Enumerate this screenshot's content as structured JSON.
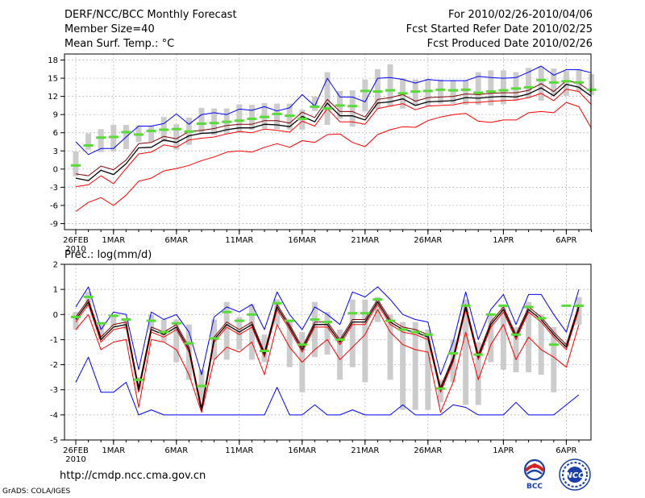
{
  "header": {
    "title": "DERF/NCC/BCC Monthly Forecast",
    "member_size": "Member Size=40",
    "variable_temp": "Mean Surf. Temp.: °C",
    "for_period": "For 2010/02/26-2010/04/06",
    "fcst_started": "Fcst Started Refer Date 2010/02/25",
    "fcst_produced": "Fcst Produced Date 2010/02/26"
  },
  "footer": {
    "url": "http://cmdp.ncc.cma.gov.cn",
    "grads": "GrADS: COLA/IGES",
    "logo_bcc": "BCC",
    "logo_ncc": "NCC"
  },
  "colors": {
    "mean": "#000000",
    "upper": "#0000ff",
    "lower": "#ff0000",
    "band_inner": "#800000",
    "bar": "#cccccc",
    "marker": "#55dd33"
  },
  "chart_data": [
    {
      "type": "line",
      "id": "temp",
      "title": "Mean Surf. Temp.: °C",
      "ylim": [
        -10,
        19
      ],
      "yticks": [
        -9,
        -6,
        -3,
        0,
        3,
        6,
        9,
        12,
        15,
        18
      ],
      "x_tick_labels": [
        "26FEB",
        "1MAR",
        "6MAR",
        "11MAR",
        "16MAR",
        "21MAR",
        "26MAR",
        "1APR",
        "6APR"
      ],
      "x_tick_days": [
        1,
        4,
        9,
        14,
        19,
        24,
        29,
        35,
        40
      ],
      "x_sub_label": "2010",
      "mean": [
        -1.5,
        -1.9,
        -0.2,
        -0.9,
        0.9,
        3.5,
        3.6,
        4.8,
        4.4,
        5.5,
        5.9,
        6.0,
        6.5,
        6.8,
        6.8,
        7.4,
        7.3,
        7.0,
        8.7,
        7.8,
        10.9,
        8.8,
        8.8,
        8.1,
        10.9,
        11.1,
        11.6,
        10.5,
        11.1,
        11.2,
        11.3,
        11.8,
        11.7,
        11.9,
        12.0,
        11.9,
        12.4,
        13.4,
        12.1,
        14.0,
        13.5,
        12.0
      ],
      "upper": [
        4.5,
        2.4,
        3.4,
        3.4,
        5.3,
        7.1,
        7.1,
        7.5,
        9.1,
        7.4,
        9.0,
        9.3,
        9.0,
        9.9,
        9.7,
        10.3,
        9.6,
        10.1,
        12.3,
        10.4,
        15.0,
        11.9,
        11.9,
        11.1,
        15.0,
        15.1,
        14.8,
        14.2,
        14.8,
        14.6,
        14.6,
        14.6,
        15.3,
        15.1,
        15.0,
        15.1,
        16.0,
        17.0,
        15.5,
        16.4,
        16.4,
        15.9
      ],
      "p_upper": [
        -0.8,
        -1.1,
        0.5,
        -0.1,
        1.5,
        4.2,
        4.4,
        5.4,
        5.0,
        6.2,
        6.4,
        6.7,
        7.2,
        7.4,
        7.4,
        8.0,
        8.0,
        7.6,
        9.4,
        8.5,
        11.5,
        9.5,
        9.5,
        8.6,
        11.5,
        11.8,
        12.3,
        11.2,
        11.8,
        11.9,
        12.0,
        12.4,
        12.3,
        12.5,
        12.6,
        12.6,
        13.0,
        14.1,
        12.8,
        14.6,
        14.2,
        12.7
      ],
      "p_lower": [
        -2.9,
        -2.6,
        -1.1,
        -2.4,
        0.1,
        2.5,
        2.8,
        4.0,
        3.6,
        4.8,
        5.1,
        5.3,
        5.8,
        6.2,
        6.0,
        6.6,
        6.4,
        6.1,
        7.9,
        7.1,
        10.0,
        7.8,
        7.8,
        7.4,
        10.0,
        10.4,
        10.8,
        9.8,
        10.4,
        10.5,
        10.6,
        11.0,
        11.0,
        11.2,
        11.3,
        11.4,
        11.8,
        12.5,
        11.3,
        13.2,
        12.8,
        10.6
      ],
      "lower": [
        -7.0,
        -5.5,
        -4.7,
        -6.0,
        -4.3,
        -2.0,
        -1.5,
        -0.3,
        0.1,
        0.6,
        1.4,
        2.0,
        2.8,
        3.0,
        2.8,
        3.6,
        4.2,
        3.6,
        4.7,
        4.4,
        5.7,
        5.8,
        4.4,
        3.7,
        5.7,
        6.5,
        7.0,
        6.9,
        8.0,
        8.6,
        9.0,
        9.2,
        7.9,
        7.7,
        8.1,
        8.1,
        9.3,
        9.5,
        9.3,
        11.0,
        10.3,
        6.7
      ],
      "bar_low": [
        -1.2,
        3.2,
        2.8,
        2.9,
        3.3,
        4.5,
        4.5,
        4.5,
        3.2,
        4.0,
        5.8,
        5.6,
        5.8,
        6.0,
        6.5,
        6.7,
        6.6,
        6.5,
        6.5,
        9.6,
        7.3,
        8.3,
        7.0,
        9.5,
        9.9,
        10.3,
        10.0,
        10.5,
        10.4,
        10.8,
        10.8,
        10.6,
        10.6,
        10.5,
        10.7,
        11.3,
        11.8,
        11.3,
        12.2,
        12.1,
        12.8,
        12.2
      ],
      "bar_high": [
        2.9,
        5.9,
        6.6,
        7.3,
        7.3,
        7.2,
        7.2,
        8.6,
        7.4,
        8.5,
        10.1,
        10.0,
        10.0,
        10.7,
        10.6,
        10.9,
        10.8,
        10.8,
        9.8,
        12.0,
        16.0,
        12.9,
        13.0,
        14.8,
        16.5,
        17.3,
        15.0,
        14.8,
        14.9,
        14.8,
        14.7,
        14.6,
        16.0,
        16.3,
        16.3,
        16.0,
        16.7,
        16.9,
        16.6,
        16.2,
        16.5,
        15.7
      ],
      "marker": [
        0.6,
        3.9,
        5.2,
        5.3,
        6.1,
        5.7,
        6.3,
        6.5,
        6.6,
        6.2,
        7.5,
        7.6,
        7.8,
        8.0,
        8.3,
        8.6,
        9.1,
        8.8,
        8.3,
        10.3,
        10.0,
        10.5,
        10.4,
        12.9,
        12.8,
        13.0,
        12.5,
        12.8,
        12.9,
        13.1,
        13.0,
        13.1,
        12.6,
        12.8,
        13.0,
        13.3,
        13.5,
        14.7,
        14.3,
        14.5,
        14.3,
        13.1
      ]
    },
    {
      "type": "line",
      "id": "prec",
      "title": "Prec.: log(mm/d)",
      "ylim": [
        -5,
        2
      ],
      "yticks": [
        -5,
        -4,
        -3,
        -2,
        -1,
        0,
        1,
        2
      ],
      "x_tick_labels": [
        "26FEB",
        "1MAR",
        "6MAR",
        "11MAR",
        "16MAR",
        "21MAR",
        "26MAR",
        "1APR",
        "6APR"
      ],
      "x_tick_days": [
        1,
        4,
        9,
        14,
        19,
        24,
        29,
        35,
        40
      ],
      "x_sub_label": "2010",
      "mean": [
        -0.2,
        0.5,
        -1.0,
        -0.5,
        -0.4,
        -3.0,
        -0.6,
        -0.8,
        -0.5,
        -1.4,
        -3.8,
        -1.0,
        -0.4,
        -0.7,
        -0.4,
        -1.6,
        0.3,
        -0.5,
        -1.4,
        -0.4,
        -0.4,
        -1.1,
        -0.3,
        -0.3,
        0.5,
        -0.3,
        -0.6,
        -0.7,
        -0.9,
        -3.0,
        -1.8,
        0.3,
        -1.7,
        -0.4,
        0.2,
        -0.9,
        0.2,
        -0.2,
        -0.8,
        -1.3,
        0.3
      ],
      "upper": [
        0.3,
        1.1,
        -0.6,
        0.1,
        0.0,
        -2.2,
        0.1,
        -0.2,
        0.0,
        -0.7,
        -2.4,
        -0.1,
        0.3,
        0.1,
        0.4,
        -0.6,
        0.9,
        0.0,
        -0.6,
        0.3,
        0.0,
        -0.4,
        0.9,
        0.7,
        1.1,
        0.6,
        0.0,
        -0.2,
        -0.3,
        -2.4,
        -1.1,
        0.9,
        -1.0,
        0.2,
        0.8,
        -0.4,
        0.8,
        0.8,
        0.0,
        -0.7,
        1.0
      ],
      "p_upper": [
        -0.1,
        0.6,
        -0.9,
        -0.4,
        -0.3,
        -2.9,
        -0.5,
        -0.7,
        -0.4,
        -1.3,
        -3.7,
        -0.9,
        -0.3,
        -0.6,
        -0.3,
        -1.5,
        0.4,
        -0.4,
        -1.3,
        -0.3,
        -0.3,
        -1.0,
        -0.2,
        -0.2,
        0.6,
        -0.2,
        -0.5,
        -0.6,
        -0.8,
        -2.9,
        -1.7,
        0.4,
        -1.6,
        -0.3,
        0.3,
        -0.8,
        0.3,
        -0.1,
        -0.7,
        -1.2,
        0.4
      ],
      "p_lower": [
        -0.3,
        0.4,
        -1.1,
        -0.6,
        -0.5,
        -3.1,
        -0.7,
        -0.9,
        -0.6,
        -1.5,
        -3.9,
        -1.1,
        -0.5,
        -0.8,
        -0.5,
        -1.7,
        0.2,
        -0.6,
        -1.5,
        -0.5,
        -0.5,
        -1.2,
        -0.4,
        -0.4,
        0.4,
        -0.4,
        -0.7,
        -0.8,
        -1.0,
        -3.1,
        -1.9,
        0.2,
        -1.8,
        -0.5,
        0.1,
        -1.0,
        0.1,
        -0.3,
        -0.9,
        -1.4,
        0.2
      ],
      "lower": [
        -0.6,
        0.0,
        -1.4,
        -1.1,
        -1.0,
        -3.7,
        -1.0,
        -1.1,
        -1.4,
        -2.4,
        -3.9,
        -1.8,
        -1.3,
        -1.5,
        -1.1,
        -2.4,
        -0.4,
        -1.3,
        -1.9,
        -1.4,
        -1.0,
        -1.8,
        -1.3,
        -0.8,
        0.2,
        -0.7,
        -1.2,
        -1.4,
        -1.5,
        -3.9,
        -2.7,
        -0.7,
        -2.6,
        -1.2,
        -0.4,
        -1.8,
        -0.9,
        -1.4,
        -1.7,
        -2.1,
        -0.4
      ],
      "min": [
        -2.7,
        -1.7,
        -3.1,
        -3.1,
        -2.7,
        -4.0,
        -3.8,
        -4.0,
        -4.0,
        -4.0,
        -4.0,
        -4.0,
        -4.0,
        -4.0,
        -4.0,
        -4.0,
        -2.9,
        -4.0,
        -4.0,
        -3.6,
        -4.0,
        -4.0,
        -3.8,
        -4.0,
        -4.0,
        -4.0,
        -3.6,
        -4.0,
        -4.0,
        -4.0,
        -3.6,
        -3.7,
        -4.0,
        -4.0,
        -4.0,
        -3.5,
        -4.0,
        -4.0,
        -4.0,
        -3.6,
        -3.2
      ],
      "bar_low": [
        -0.6,
        0.3,
        -1.0,
        -0.5,
        -0.6,
        -3.0,
        -0.6,
        -1.1,
        -1.9,
        -2.6,
        -3.4,
        -1.8,
        -1.8,
        -1.4,
        -1.8,
        -1.9,
        -0.4,
        -2.1,
        -3.1,
        -1.7,
        -1.6,
        -2.6,
        -2.1,
        -2.7,
        -0.3,
        -2.6,
        -3.8,
        -3.8,
        -3.8,
        -3.5,
        -2.7,
        -3.6,
        -3.6,
        -1.9,
        -2.2,
        -2.3,
        -2.3,
        -2.4,
        -3.1,
        -1.3,
        -0.4
      ],
      "bar_high": [
        0.1,
        0.9,
        -0.4,
        0.0,
        -0.2,
        -2.5,
        0.0,
        -0.2,
        -0.2,
        -0.4,
        -2.2,
        -0.2,
        0.5,
        -0.1,
        0.4,
        -0.8,
        0.6,
        -0.2,
        -0.7,
        0.5,
        0.1,
        -0.6,
        0.6,
        0.6,
        0.7,
        0.0,
        -0.3,
        -0.3,
        -0.6,
        -2.6,
        -1.0,
        0.6,
        -1.1,
        0.0,
        0.4,
        -0.5,
        0.5,
        0.0,
        -0.5,
        -1.1,
        0.7
      ],
      "marker": [
        -0.1,
        0.7,
        -0.35,
        -0.05,
        -0.2,
        -2.6,
        -0.25,
        -0.7,
        -0.35,
        -1.15,
        -2.85,
        -0.95,
        0.1,
        -0.25,
        0.0,
        -1.45,
        0.45,
        -0.25,
        -1.2,
        -0.2,
        -0.3,
        -1.0,
        0.05,
        0.05,
        0.6,
        -0.25,
        -0.6,
        -0.7,
        -0.8,
        -2.95,
        -1.55,
        0.35,
        -1.6,
        0.0,
        0.35,
        -0.8,
        0.3,
        -0.15,
        -1.2,
        0.35,
        0.35
      ]
    }
  ]
}
